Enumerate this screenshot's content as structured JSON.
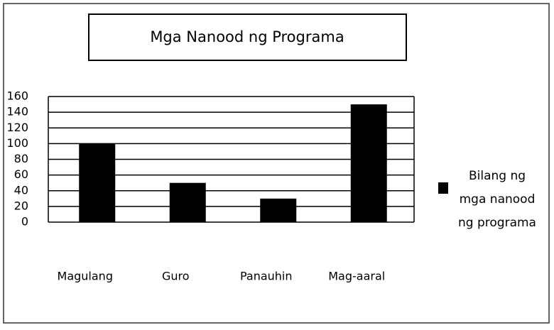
{
  "chart_data": {
    "type": "bar",
    "title": "Mga Nanood ng Programa",
    "categories": [
      "Magulang",
      "Guro",
      "Panauhin",
      "Mag-aaral"
    ],
    "series": [
      {
        "name": "Bilang ng mga nanood ng programa",
        "color": "#000000",
        "values": [
          100,
          50,
          30,
          150
        ]
      }
    ],
    "ylim": [
      0,
      160
    ],
    "yticks": [
      0,
      20,
      40,
      60,
      80,
      100,
      120,
      140,
      160
    ],
    "grid": true,
    "legend": "right"
  }
}
